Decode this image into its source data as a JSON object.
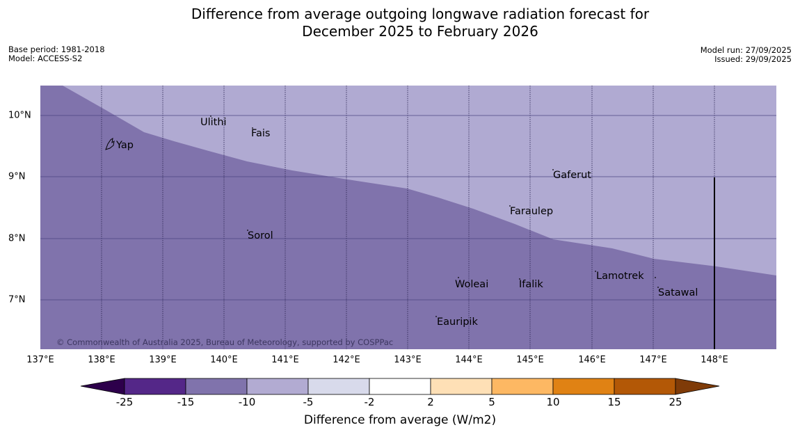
{
  "title": {
    "line1": "Difference from average outgoing longwave radiation forecast for",
    "line2": "December 2025 to February 2026"
  },
  "meta": {
    "base_period": "Base period: 1981-2018",
    "model": "Model: ACCESS-S2",
    "model_run": "Model run: 27/09/2025",
    "issued": "Issued: 29/09/2025"
  },
  "map": {
    "lon_labels": [
      "137°E",
      "138°E",
      "139°E",
      "140°E",
      "141°E",
      "142°E",
      "143°E",
      "144°E",
      "145°E",
      "146°E",
      "147°E",
      "148°E"
    ],
    "lat_labels": [
      "10°N",
      "9°N",
      "8°N",
      "7°N"
    ],
    "copyright": "© Commonwealth of Australia 2025, Bureau of Meteorology, supported by COSPPac",
    "places": [
      "Yap",
      "Ulithi",
      "Fais",
      "Gaferut",
      "Faraulep",
      "Sorol",
      "Woleai",
      "Ifalik",
      "Lamotrek",
      "Satawal",
      "Eauripik"
    ],
    "region_colors": {
      "minus15_to_minus10": "#8073ac",
      "minus10_to_minus5": "#b0aad2"
    }
  },
  "colorbar": {
    "ticks": [
      "-25",
      "-15",
      "-10",
      "-5",
      "-2",
      "2",
      "5",
      "10",
      "15",
      "25"
    ],
    "colors": [
      "#2d004b",
      "#542788",
      "#8073ac",
      "#b2abd2",
      "#d8daeb",
      "#ffffff",
      "#fee0b6",
      "#fdb863",
      "#e08214",
      "#b35806",
      "#7f3b08"
    ],
    "label": "Difference from average (W/m2)"
  }
}
